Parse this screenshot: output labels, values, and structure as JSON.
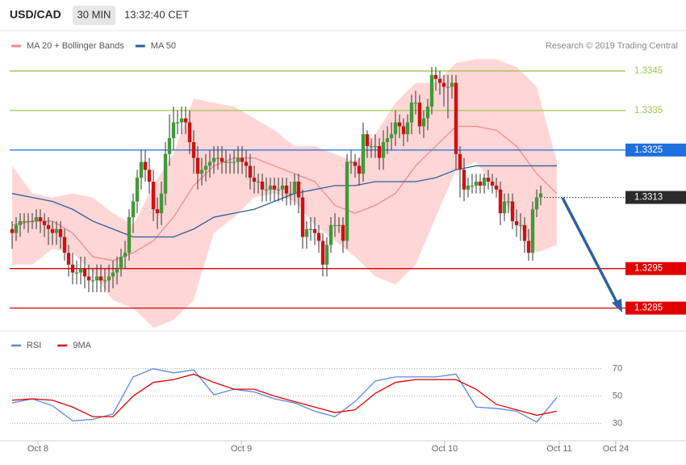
{
  "chart_data": [
    {
      "type": "candlestick",
      "title": "USD/CAD",
      "interval": "30 MIN",
      "time": "13:32:40 CET",
      "source": "Research © 2019 Trading Central",
      "xlim": [
        -0.6,
        167
      ],
      "ylim": [
        1.3279,
        1.3355
      ],
      "candles": {
        "up_color": "#3f9a37",
        "down_color": "#d20f0f",
        "open": [
          1.3305,
          1.3304,
          1.3306,
          1.3307,
          1.3307,
          1.3307,
          1.3307,
          1.3308,
          1.3307,
          1.3306,
          1.3305,
          1.3304,
          1.3305,
          1.3303,
          1.3299,
          1.3296,
          1.3294,
          1.3294,
          1.3295,
          1.3293,
          1.3292,
          1.3292,
          1.3293,
          1.3292,
          1.3292,
          1.3293,
          1.3294,
          1.3295,
          1.3298,
          1.3299,
          1.3308,
          1.3312,
          1.3318,
          1.3322,
          1.332,
          1.3317,
          1.331,
          1.3309,
          1.3314,
          1.3324,
          1.3328,
          1.3332,
          1.3332,
          1.3333,
          1.3332,
          1.3327,
          1.3323,
          1.3319,
          1.332,
          1.3321,
          1.3322,
          1.3323,
          1.3323,
          1.3322,
          1.3322,
          1.3322,
          1.3322,
          1.3323,
          1.3322,
          1.3321,
          1.3318,
          1.3317,
          1.3317,
          1.3315,
          1.3315,
          1.3316,
          1.3315,
          1.3315,
          1.3316,
          1.3314,
          1.3314,
          1.3317,
          1.3313,
          1.3303,
          1.3305,
          1.3305,
          1.3304,
          1.3302,
          1.3296,
          1.3301,
          1.3306,
          1.3306,
          1.3306,
          1.3302,
          1.3322,
          1.3322,
          1.3321,
          1.3319,
          1.3329,
          1.3326,
          1.3326,
          1.3326,
          1.3323,
          1.3327,
          1.3328,
          1.3329,
          1.3332,
          1.3331,
          1.3329,
          1.3332,
          1.3337,
          1.3337,
          1.3331,
          1.3333,
          1.3336,
          1.3344,
          1.3343,
          1.3342,
          1.3341,
          1.3341,
          1.3342,
          1.3324,
          1.332,
          1.3315,
          1.3316,
          1.3316,
          1.3317,
          1.3316,
          1.3318,
          1.3317,
          1.3316,
          1.3315,
          1.3309,
          1.3312,
          1.3312,
          1.3307,
          1.3306,
          1.3306,
          1.3302,
          1.3299,
          1.331,
          1.3313
        ],
        "high": [
          1.3307,
          1.3308,
          1.3309,
          1.3309,
          1.3309,
          1.3309,
          1.331,
          1.331,
          1.3309,
          1.3308,
          1.3307,
          1.3307,
          1.3307,
          1.3305,
          1.3301,
          1.3299,
          1.3297,
          1.3298,
          1.3298,
          1.3296,
          1.3295,
          1.3296,
          1.3296,
          1.3295,
          1.3296,
          1.3297,
          1.3298,
          1.33,
          1.3302,
          1.331,
          1.3314,
          1.332,
          1.3325,
          1.3325,
          1.3323,
          1.332,
          1.3313,
          1.3317,
          1.3327,
          1.3334,
          1.3336,
          1.3335,
          1.3336,
          1.3336,
          1.3335,
          1.333,
          1.3326,
          1.3323,
          1.3324,
          1.3325,
          1.3326,
          1.3326,
          1.3326,
          1.3325,
          1.3324,
          1.3325,
          1.3326,
          1.3326,
          1.3325,
          1.3324,
          1.3321,
          1.3319,
          1.3319,
          1.3318,
          1.3318,
          1.3318,
          1.3318,
          1.3318,
          1.3318,
          1.3317,
          1.3319,
          1.3319,
          1.3315,
          1.3307,
          1.3308,
          1.3308,
          1.3306,
          1.3304,
          1.3303,
          1.3308,
          1.3309,
          1.3308,
          1.3308,
          1.3324,
          1.3325,
          1.3324,
          1.3323,
          1.3332,
          1.333,
          1.3328,
          1.3329,
          1.3328,
          1.333,
          1.3331,
          1.3332,
          1.3335,
          1.3334,
          1.3333,
          1.3334,
          1.3339,
          1.334,
          1.3339,
          1.3335,
          1.3338,
          1.3346,
          1.3346,
          1.3345,
          1.3344,
          1.3344,
          1.3344,
          1.3344,
          1.3326,
          1.3323,
          1.3318,
          1.3319,
          1.3319,
          1.3319,
          1.3319,
          1.332,
          1.3319,
          1.3318,
          1.3317,
          1.3314,
          1.3314,
          1.3314,
          1.331,
          1.3309,
          1.3308,
          1.3305,
          1.3312,
          1.3315,
          1.3316
        ],
        "low": [
          1.33,
          1.3302,
          1.3303,
          1.3305,
          1.3304,
          1.3305,
          1.3305,
          1.3304,
          1.3303,
          1.3301,
          1.3301,
          1.3301,
          1.33,
          1.3297,
          1.3293,
          1.3291,
          1.3291,
          1.3291,
          1.329,
          1.3289,
          1.3289,
          1.3289,
          1.3289,
          1.3289,
          1.3289,
          1.329,
          1.3291,
          1.3293,
          1.3295,
          1.3297,
          1.3304,
          1.3309,
          1.3315,
          1.3317,
          1.3314,
          1.3307,
          1.3305,
          1.3306,
          1.3311,
          1.3321,
          1.3325,
          1.3329,
          1.3329,
          1.3329,
          1.3324,
          1.3319,
          1.3315,
          1.3316,
          1.3317,
          1.3318,
          1.3319,
          1.332,
          1.3319,
          1.3319,
          1.3319,
          1.3319,
          1.3319,
          1.3319,
          1.3318,
          1.3315,
          1.3314,
          1.3314,
          1.3312,
          1.3312,
          1.3312,
          1.3312,
          1.3312,
          1.3312,
          1.3311,
          1.3311,
          1.3311,
          1.3309,
          1.33,
          1.33,
          1.3302,
          1.3301,
          1.3299,
          1.3293,
          1.3293,
          1.3299,
          1.3303,
          1.3304,
          1.3299,
          1.33,
          1.3319,
          1.3318,
          1.3316,
          1.3317,
          1.3323,
          1.3323,
          1.3323,
          1.332,
          1.332,
          1.3324,
          1.3325,
          1.3326,
          1.3328,
          1.3326,
          1.3327,
          1.3329,
          1.3334,
          1.3329,
          1.3328,
          1.333,
          1.3334,
          1.334,
          1.3339,
          1.3336,
          1.3333,
          1.3338,
          1.332,
          1.3313,
          1.3312,
          1.3313,
          1.3314,
          1.3314,
          1.3314,
          1.3314,
          1.3315,
          1.3314,
          1.3313,
          1.3306,
          1.3307,
          1.3309,
          1.3305,
          1.3303,
          1.3302,
          1.3299,
          1.3297,
          1.3297,
          1.3308,
          1.3311
        ],
        "close": [
          1.3304,
          1.3306,
          1.3307,
          1.3307,
          1.3307,
          1.3307,
          1.3308,
          1.3307,
          1.3306,
          1.3305,
          1.3304,
          1.3305,
          1.3303,
          1.3299,
          1.3296,
          1.3294,
          1.3294,
          1.3295,
          1.3293,
          1.3292,
          1.3292,
          1.3293,
          1.3292,
          1.3292,
          1.3293,
          1.3294,
          1.3295,
          1.3298,
          1.3299,
          1.3308,
          1.3312,
          1.3318,
          1.3322,
          1.332,
          1.3317,
          1.331,
          1.3309,
          1.3314,
          1.3324,
          1.3328,
          1.3332,
          1.3332,
          1.3333,
          1.3332,
          1.3327,
          1.3323,
          1.3319,
          1.332,
          1.3321,
          1.3322,
          1.3323,
          1.3323,
          1.3322,
          1.3322,
          1.3322,
          1.3322,
          1.3323,
          1.3322,
          1.3321,
          1.3318,
          1.3317,
          1.3317,
          1.3315,
          1.3315,
          1.3316,
          1.3315,
          1.3315,
          1.3316,
          1.3314,
          1.3314,
          1.3317,
          1.3313,
          1.3303,
          1.3305,
          1.3305,
          1.3304,
          1.3302,
          1.3296,
          1.3301,
          1.3306,
          1.3306,
          1.3306,
          1.3302,
          1.3322,
          1.3322,
          1.3321,
          1.3319,
          1.3329,
          1.3326,
          1.3326,
          1.3326,
          1.3323,
          1.3327,
          1.3328,
          1.3329,
          1.3332,
          1.3331,
          1.3329,
          1.3332,
          1.3337,
          1.3337,
          1.3331,
          1.3333,
          1.3336,
          1.3344,
          1.3343,
          1.3342,
          1.3341,
          1.3341,
          1.3342,
          1.3324,
          1.332,
          1.3315,
          1.3316,
          1.3316,
          1.3317,
          1.3316,
          1.3318,
          1.3317,
          1.3316,
          1.3315,
          1.3309,
          1.3312,
          1.3312,
          1.3307,
          1.3306,
          1.3306,
          1.3302,
          1.3299,
          1.331,
          1.3313,
          1.3314
        ]
      },
      "overlays": {
        "x": [
          0,
          5,
          10,
          15,
          20,
          25,
          30,
          35,
          40,
          45,
          50,
          55,
          60,
          65,
          70,
          75,
          80,
          85,
          90,
          95,
          100,
          105,
          110,
          115,
          120,
          125,
          130,
          135
        ],
        "band_color": "#ffd6d6",
        "series": [
          {
            "name": "MA 20 + Bollinger Bands",
            "color": "#f08a8a",
            "values": [
              1.3306,
              1.3307,
              1.3307,
              1.3304,
              1.3298,
              1.3297,
              1.3299,
              1.3302,
              1.3308,
              1.3316,
              1.3321,
              1.3323,
              1.3323,
              1.3321,
              1.3319,
              1.3317,
              1.3311,
              1.3309,
              1.3311,
              1.3314,
              1.3321,
              1.3326,
              1.3331,
              1.3331,
              1.333,
              1.3326,
              1.3319,
              1.3314
            ],
            "upper": [
              1.3321,
              1.3314,
              1.3313,
              1.3314,
              1.3313,
              1.3309,
              1.3306,
              1.3316,
              1.3324,
              1.3338,
              1.3337,
              1.3336,
              1.3333,
              1.333,
              1.3326,
              1.3326,
              1.3324,
              1.3322,
              1.3329,
              1.3337,
              1.3342,
              1.3342,
              1.3347,
              1.3348,
              1.3348,
              1.3346,
              1.3341,
              1.3322
            ],
            "lower": [
              1.3296,
              1.3296,
              1.33,
              1.3299,
              1.3294,
              1.3287,
              1.3285,
              1.328,
              1.3282,
              1.3287,
              1.3304,
              1.3308,
              1.3313,
              1.3314,
              1.3312,
              1.3306,
              1.3302,
              1.3298,
              1.3293,
              1.3291,
              1.3296,
              1.3308,
              1.332,
              1.3322,
              1.3315,
              1.3307,
              1.3299,
              1.3301
            ]
          },
          {
            "name": "MA 50",
            "color": "#2d5d9b",
            "values": [
              1.3314,
              1.3313,
              1.3312,
              1.331,
              1.3307,
              1.3305,
              1.3303,
              1.3303,
              1.3303,
              1.3305,
              1.3308,
              1.3309,
              1.331,
              1.3312,
              1.3314,
              1.3315,
              1.3316,
              1.3316,
              1.3317,
              1.3317,
              1.3317,
              1.3318,
              1.332,
              1.3321,
              1.3321,
              1.3321,
              1.3321,
              1.3321
            ]
          }
        ]
      },
      "levels": [
        {
          "value": 1.3345,
          "color": "#9cc84e",
          "style": "solid",
          "box": false
        },
        {
          "value": 1.3335,
          "color": "#9cc84e",
          "style": "solid",
          "box": false
        },
        {
          "value": 1.3325,
          "color": "#1f6fe0",
          "style": "solid",
          "box": true
        },
        {
          "value": 1.3313,
          "color": "#2a2a2a",
          "style": "dotted",
          "box": true
        },
        {
          "value": 1.3295,
          "color": "#e00000",
          "style": "solid",
          "box": true
        },
        {
          "value": 1.3285,
          "color": "#e00000",
          "style": "solid",
          "box": true
        }
      ]
    },
    {
      "type": "line",
      "xlim": [
        -0.6,
        167
      ],
      "ylim": [
        18,
        81
      ],
      "yticks": [
        30,
        50,
        70
      ],
      "grid": true,
      "xticks": [
        {
          "value": 6.4,
          "label": "Oct 8"
        },
        {
          "value": 56.8,
          "label": "Oct 9"
        },
        {
          "value": 107.2,
          "label": "Oct 10"
        },
        {
          "value": 135.6,
          "label": "Oct 11"
        },
        {
          "value": 149.6,
          "label": "Oct 24"
        }
      ],
      "x": [
        0,
        5,
        10,
        15,
        20,
        25,
        30,
        35,
        40,
        45,
        50,
        55,
        60,
        65,
        70,
        75,
        80,
        85,
        90,
        95,
        100,
        105,
        110,
        115,
        120,
        125,
        130,
        135
      ],
      "series": [
        {
          "name": "RSI",
          "color": "#5b86e5",
          "values": [
            45,
            48,
            43,
            32,
            33,
            37,
            64,
            70,
            67,
            69,
            51,
            55,
            53,
            48,
            45,
            39,
            35,
            46,
            61,
            64,
            64,
            64,
            66,
            42,
            41,
            39,
            31,
            49
          ]
        },
        {
          "name": "9MA",
          "color": "#e00000",
          "values": [
            47,
            48,
            47,
            42,
            35,
            35,
            50,
            60,
            62,
            66,
            60,
            55,
            55,
            50,
            46,
            42,
            38,
            40,
            52,
            60,
            62,
            62,
            62,
            55,
            44,
            40,
            36,
            39
          ]
        }
      ]
    }
  ]
}
